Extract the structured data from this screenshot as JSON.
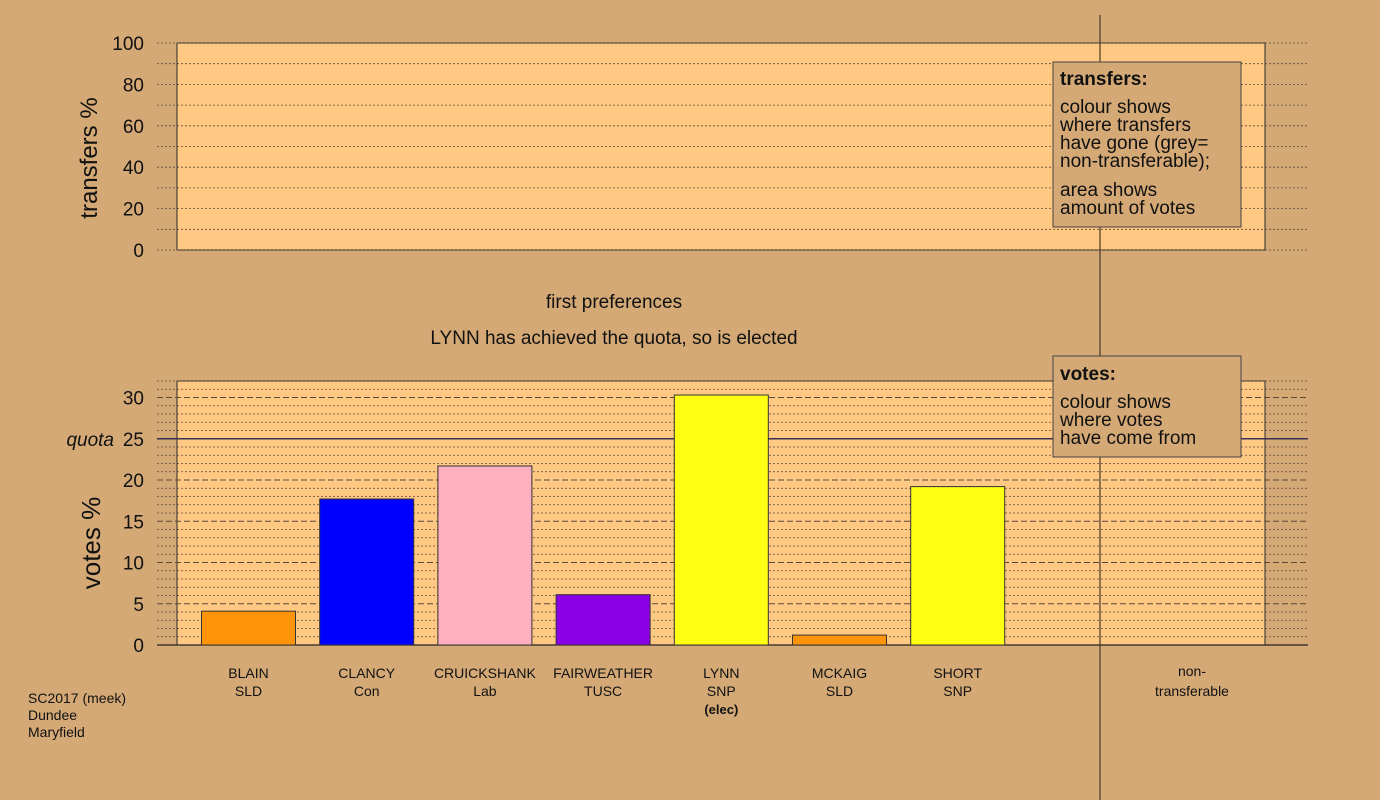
{
  "chart_data": [
    {
      "type": "bar",
      "title": "",
      "xlabel": "",
      "ylabel": "transfers %",
      "ylim": [
        0,
        100
      ],
      "yticks": [
        0,
        20,
        40,
        60,
        80,
        100
      ],
      "grid": true,
      "legend": {
        "position": "top-right",
        "heading": "transfers:",
        "lines": [
          "colour shows",
          "where transfers",
          "have gone (grey=",
          "non-transferable);"
        ],
        "lines2": [
          "area shows",
          "amount of votes"
        ]
      },
      "series": []
    },
    {
      "type": "bar",
      "subtitle": "first preferences",
      "title": "LYNN has achieved the quota, so is elected",
      "xlabel": "",
      "ylabel": "votes %",
      "ylim": [
        0,
        32
      ],
      "yticks": [
        0,
        5,
        10,
        15,
        20,
        25,
        30
      ],
      "grid": true,
      "quota": {
        "value": 25,
        "label": "quota"
      },
      "legend": {
        "position": "top-right",
        "heading": "votes:",
        "lines": [
          "colour shows",
          "where votes",
          "have come from"
        ]
      },
      "categories": [
        {
          "name": "BLAIN",
          "party": "SLD",
          "note": ""
        },
        {
          "name": "CLANCY",
          "party": "Con",
          "note": ""
        },
        {
          "name": "CRUICKSHANK",
          "party": "Lab",
          "note": ""
        },
        {
          "name": "FAIRWEATHER",
          "party": "TUSC",
          "note": ""
        },
        {
          "name": "LYNN",
          "party": "SNP",
          "note": "(elec)"
        },
        {
          "name": "MCKAIG",
          "party": "SLD",
          "note": ""
        },
        {
          "name": "SHORT",
          "party": "SNP",
          "note": ""
        }
      ],
      "values": [
        4.1,
        17.7,
        21.7,
        6.1,
        30.3,
        1.2,
        19.2
      ],
      "colors": [
        "#ff9408",
        "#0000ff",
        "#ffb0c0",
        "#8a00e6",
        "#ffff14",
        "#ff9408",
        "#ffff14"
      ],
      "nontransferable": {
        "line1": "non-",
        "line2": "transferable"
      }
    }
  ],
  "footer": {
    "line1": "SC2017 (meek)",
    "line2": "Dundee",
    "line3": "Maryfield"
  }
}
